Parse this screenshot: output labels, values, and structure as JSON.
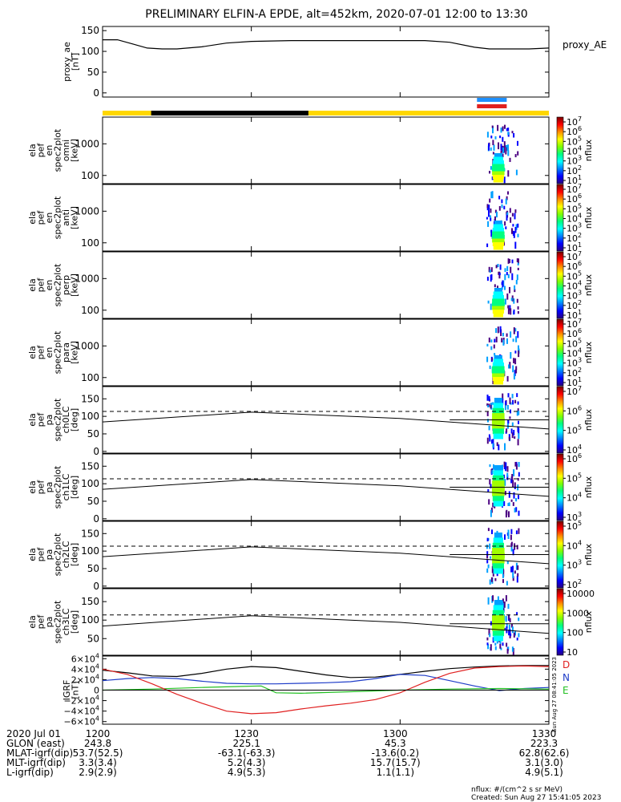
{
  "title": "PRELIMINARY ELFIN-A EPDE, alt=452km, 2020-07-01 12:00 to 13:30",
  "colors": {
    "fgs_bar": "#ffd700",
    "fgs_dark": "#000000",
    "epd_blue": "#1e90ff",
    "epd_red": "#e02020",
    "d_color": "#e02020",
    "n_color": "#1e3cc8",
    "e_color": "#22c022"
  },
  "colorbars": {
    "rows": [
      {
        "ticks": [
          "10^7",
          "10^6",
          "10^5",
          "10^4",
          "10^3",
          "10^2",
          "10^1"
        ],
        "label": "nflux"
      },
      {
        "ticks": [
          "10^7",
          "10^6",
          "10^5",
          "10^4",
          "10^3",
          "10^2",
          "10^1"
        ],
        "label": "nflux"
      },
      {
        "ticks": [
          "10^7",
          "10^6",
          "10^5",
          "10^4",
          "10^3",
          "10^2",
          "10^1"
        ],
        "label": "nflux"
      },
      {
        "ticks": [
          "10^7",
          "10^6",
          "10^5",
          "10^4",
          "10^3",
          "10^2",
          "10^1"
        ],
        "label": "nflux"
      },
      {
        "ticks": [
          "10^7",
          "10^6",
          "10^5",
          "10^4"
        ],
        "label": "nflux"
      },
      {
        "ticks": [
          "10^6",
          "10^5",
          "10^4",
          "10^3"
        ],
        "label": "nflux"
      },
      {
        "ticks": [
          "10^5",
          "10^4",
          "10^3",
          "10^2"
        ],
        "label": "nflux"
      },
      {
        "ticks": [
          "10000",
          "1000",
          "100",
          "10"
        ],
        "label": "nflux"
      }
    ]
  },
  "chart_data": {
    "type": "line",
    "x_axis": {
      "tick_labels": [
        "1200",
        "1230",
        "1300",
        "1330"
      ],
      "x_minutes": [
        0,
        30,
        60,
        90
      ],
      "range_minutes": [
        0,
        90
      ]
    },
    "bursts_minutes": [
      79,
      80.6
    ],
    "panels": [
      {
        "id": "proxy_ae",
        "kind": "line",
        "ylabel": [
          "proxy_ae",
          "[nT]"
        ],
        "right_label": "proxy_AE",
        "yticks": [
          "150",
          "100",
          "50",
          "0"
        ],
        "ytick_values": [
          150,
          100,
          50,
          0
        ],
        "ylim": [
          -10,
          160
        ],
        "series": [
          {
            "name": "proxy_AE",
            "color": "#000000",
            "x": [
              0,
              3,
              6,
              9,
              12,
              15,
              20,
              25,
              30,
              38,
              45,
              55,
              65,
              70,
              75,
              78,
              82,
              86,
              90
            ],
            "y": [
              128,
              128,
              118,
              108,
              106,
              106,
              111,
              120,
              124,
              126,
              126,
              126,
              126,
              122,
              110,
              106,
              106,
              106,
              108
            ]
          }
        ]
      },
      {
        "id": "omni",
        "kind": "spec",
        "ylabel": [
          "ela",
          "pef",
          "en",
          "spec2plot",
          "omni",
          "[keV]"
        ],
        "yticks": [
          "1000",
          "100"
        ],
        "ytick_values": [
          1000,
          100
        ],
        "ylim_log": [
          55,
          7000
        ]
      },
      {
        "id": "anti",
        "kind": "spec",
        "ylabel": [
          "ela",
          "pef",
          "en",
          "spec2plot",
          "anti",
          "[keV]"
        ],
        "yticks": [
          "1000",
          "100"
        ],
        "ytick_values": [
          1000,
          100
        ],
        "ylim_log": [
          55,
          7000
        ]
      },
      {
        "id": "perp",
        "kind": "spec",
        "ylabel": [
          "ela",
          "pef",
          "en",
          "spec2plot",
          "perp",
          "[keV]"
        ],
        "yticks": [
          "1000",
          "100"
        ],
        "ytick_values": [
          1000,
          100
        ],
        "ylim_log": [
          55,
          7000
        ]
      },
      {
        "id": "para",
        "kind": "spec",
        "ylabel": [
          "ela",
          "pef",
          "en",
          "spec2plot",
          "para",
          "[keV]"
        ],
        "yticks": [
          "1000",
          "100"
        ],
        "ytick_values": [
          1000,
          100
        ],
        "ylim_log": [
          55,
          7000
        ]
      },
      {
        "id": "ch0LC",
        "kind": "pa",
        "ylabel": [
          "ela",
          "pef",
          "pa",
          "spec2plot",
          "ch0LC",
          "[deg]"
        ],
        "yticks": [
          "150",
          "100",
          "50",
          "0"
        ],
        "ytick_values": [
          150,
          100,
          50,
          0
        ],
        "ylim": [
          -5,
          185
        ]
      },
      {
        "id": "ch1LC",
        "kind": "pa",
        "ylabel": [
          "ela",
          "pef",
          "pa",
          "spec2plot",
          "ch1LC",
          "[deg]"
        ],
        "yticks": [
          "150",
          "100",
          "50",
          "0"
        ],
        "ytick_values": [
          150,
          100,
          50,
          0
        ],
        "ylim": [
          -5,
          185
        ]
      },
      {
        "id": "ch2LC",
        "kind": "pa",
        "ylabel": [
          "ela",
          "pef",
          "pa",
          "spec2plot",
          "ch2LC",
          "[deg]"
        ],
        "yticks": [
          "150",
          "100",
          "50",
          "0"
        ],
        "ytick_values": [
          150,
          100,
          50,
          0
        ],
        "ylim": [
          -5,
          185
        ]
      },
      {
        "id": "ch3LC",
        "kind": "pa",
        "ylabel": [
          "ela",
          "pef",
          "pa",
          "spec2plot",
          "ch3LC",
          "[deg]"
        ],
        "yticks": [
          "150",
          "100",
          "50"
        ],
        "ytick_values": [
          150,
          100,
          50
        ],
        "ylim": [
          5,
          185
        ]
      },
      {
        "id": "igrf",
        "kind": "line",
        "ylabel": [
          "IGRF",
          "[nT]"
        ],
        "yticks": [
          "6×10^4",
          "4×10^4",
          "2×10^4",
          "0",
          "−2×10^4",
          "−4×10^4",
          "−6×10^4"
        ],
        "ytick_values": [
          60000,
          40000,
          20000,
          0,
          -20000,
          -40000,
          -60000
        ],
        "ylim": [
          -65000,
          65000
        ],
        "legend": [
          {
            "name": "D",
            "color": "#e02020"
          },
          {
            "name": "N",
            "color": "#1e3cc8"
          },
          {
            "name": "E",
            "color": "#22c022"
          }
        ],
        "side_note": "Sun Aug 27 08:41:05 2023",
        "series": [
          {
            "name": "total",
            "color": "#000000",
            "x": [
              0,
              5,
              10,
              15,
              20,
              25,
              30,
              35,
              40,
              45,
              50,
              55,
              60,
              65,
              70,
              75,
              80,
              85,
              90
            ],
            "y": [
              38000,
              33000,
              27000,
              26000,
              32000,
              40000,
              45000,
              43000,
              36000,
              29000,
              24000,
              25000,
              30000,
              36000,
              41000,
              44000,
              46000,
              47000,
              47000
            ]
          },
          {
            "name": "N",
            "color": "#1e3cc8",
            "x": [
              0,
              5,
              10,
              15,
              20,
              25,
              30,
              35,
              40,
              45,
              50,
              55,
              60,
              65,
              70,
              75,
              80,
              85,
              90
            ],
            "y": [
              18000,
              22000,
              24000,
              22000,
              17000,
              13000,
              12000,
              12000,
              13000,
              14000,
              16000,
              22000,
              30000,
              28000,
              18000,
              8000,
              -1000,
              3000,
              5000
            ]
          },
          {
            "name": "E",
            "color": "#22c022",
            "x": [
              0,
              10,
              20,
              28,
              32,
              35,
              40,
              50,
              60,
              70,
              80,
              90
            ],
            "y": [
              0,
              2000,
              5000,
              7000,
              8000,
              -5000,
              -6000,
              -3000,
              0,
              2000,
              3000,
              2000
            ]
          },
          {
            "name": "D",
            "color": "#e02020",
            "x": [
              0,
              5,
              10,
              15,
              20,
              25,
              30,
              35,
              40,
              45,
              50,
              55,
              60,
              65,
              70,
              75,
              80,
              85,
              90
            ],
            "y": [
              40000,
              30000,
              12000,
              -8000,
              -25000,
              -40000,
              -45000,
              -43000,
              -36000,
              -30000,
              -25000,
              -18000,
              -5000,
              15000,
              32000,
              42000,
              45000,
              46000,
              45000
            ]
          }
        ]
      }
    ],
    "annotation_rows": [
      {
        "name": "2020 Jul 01",
        "values": [
          "1200",
          "1230",
          "1300",
          "1330"
        ]
      },
      {
        "name": "GLON (east)",
        "values": [
          "243.8",
          "225.1",
          "45.3",
          "223.3"
        ]
      },
      {
        "name": "MLAT-igrf(dip)",
        "values": [
          "53.7(52.5)",
          "-63.1(-63.3)",
          "-13.6(0.2)",
          "62.8(62.6)"
        ]
      },
      {
        "name": "MLT-igrf(dip)",
        "values": [
          "3.3(3.4)",
          "5.2(4.3)",
          "15.7(15.7)",
          "3.1(3.0)"
        ]
      },
      {
        "name": "L-igrf(dip)",
        "values": [
          "2.9(2.9)",
          "4.9(5.3)",
          "1.1(1.1)",
          "4.9(5.1)"
        ]
      }
    ],
    "footer": [
      "nflux: #/(cm^2 s sr MeV)",
      "Created: Sun Aug 27 15:41:05 2023"
    ]
  }
}
